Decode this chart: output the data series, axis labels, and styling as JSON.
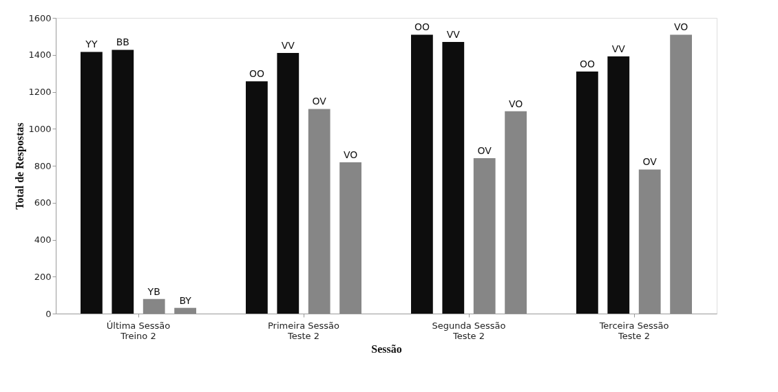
{
  "chart_data": {
    "type": "bar",
    "xlabel": "Sessão",
    "ylabel": "Total de Respostas",
    "categories": [
      "Última Sessão\nTreino 2",
      "Primeira Sessão\nTeste 2",
      "Segunda Sessão\nTeste 2",
      "Terceira Sessão\nTeste 2"
    ],
    "series": [
      {
        "color": "#0d0d0d",
        "values": [
          1416,
          1257,
          1509,
          1310
        ],
        "value_labels": [
          "YY",
          "OO",
          "OO",
          "OO"
        ]
      },
      {
        "color": "#0d0d0d",
        "values": [
          1427,
          1410,
          1470,
          1392
        ],
        "value_labels": [
          "BB",
          "VV",
          "VV",
          "VV"
        ]
      },
      {
        "color": "#868686",
        "values": [
          79,
          1107,
          841,
          780
        ],
        "value_labels": [
          "YB",
          "OV",
          "OV",
          "OV"
        ]
      },
      {
        "color": "#868686",
        "values": [
          31,
          819,
          1095,
          1509
        ],
        "value_labels": [
          "BY",
          "VO",
          "VO",
          "VO"
        ]
      }
    ],
    "ylim": [
      0,
      1600
    ],
    "yticks": [
      0,
      200,
      400,
      600,
      800,
      1000,
      1200,
      1400,
      1600
    ],
    "grid": false
  }
}
